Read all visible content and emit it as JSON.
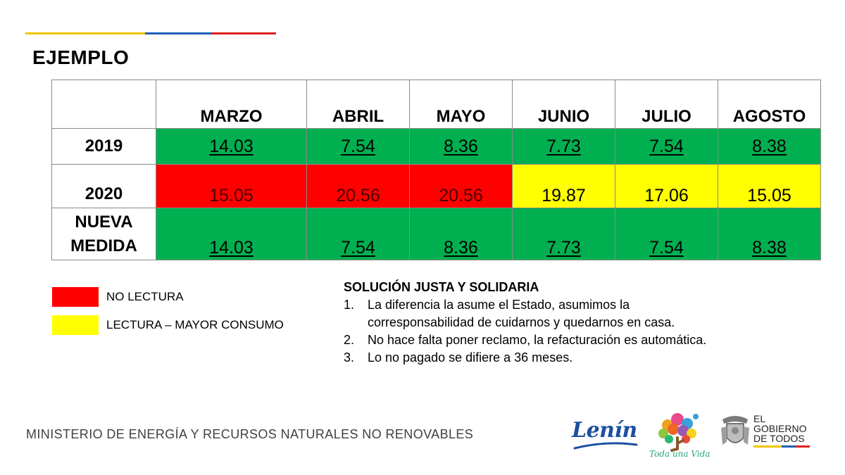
{
  "title": "EJEMPLO",
  "brand_rule_colors": [
    "#f5c400",
    "#1f5fb4",
    "#e02020"
  ],
  "table": {
    "months": [
      "MARZO",
      "ABRIL",
      "MAYO",
      "JUNIO",
      "JULIO",
      "AGOSTO"
    ],
    "rows": [
      {
        "label": "2019",
        "label_lines": [
          "2019"
        ],
        "values": [
          "14.03",
          "7.54",
          "8.36",
          "7.73",
          "7.54",
          "8.38"
        ],
        "colors": [
          "green",
          "green",
          "green",
          "green",
          "green",
          "green"
        ]
      },
      {
        "label": "2020",
        "label_lines": [
          "2020"
        ],
        "values": [
          "15.05",
          "20.56",
          "20.56",
          "19.87",
          "17.06",
          "15.05"
        ],
        "colors": [
          "red",
          "red",
          "red",
          "yellow",
          "yellow",
          "yellow"
        ]
      },
      {
        "label": "NUEVA MEDIDA",
        "label_lines": [
          "NUEVA",
          "MEDIDA"
        ],
        "values": [
          "14.03",
          "7.54",
          "8.36",
          "7.73",
          "7.54",
          "8.38"
        ],
        "colors": [
          "green",
          "green",
          "green",
          "green",
          "green",
          "green"
        ]
      }
    ],
    "status_colors": {
      "green": "#00b050",
      "red": "#ff0000",
      "yellow": "#ffff00"
    }
  },
  "legend": [
    {
      "color": "#ff0000",
      "label": "NO LECTURA"
    },
    {
      "color": "#ffff00",
      "label": "LECTURA – MAYOR CONSUMO"
    }
  ],
  "solution": {
    "title": "SOLUCIÓN JUSTA Y SOLIDARIA",
    "items": [
      {
        "num": "1.",
        "lines": [
          "La diferencia la asume el Estado, asumimos la",
          "corresponsabilidad de cuidarnos y quedarnos en casa."
        ]
      },
      {
        "num": "2.",
        "lines": [
          "No hace falta poner reclamo, la refacturación es automática."
        ]
      },
      {
        "num": "3.",
        "lines": [
          "Lo no pagado se difiere a 36 meses."
        ]
      }
    ]
  },
  "footer": {
    "ministry": "MINISTERIO DE ENERGÍA Y RECURSOS NATURALES NO RENOVABLES",
    "logo_lenin": "Lenín",
    "logo_tree_caption": "Toda una Vida",
    "logo_gobierno_lines": [
      "EL",
      "GOBIERNO",
      "DE TODOS"
    ]
  },
  "icons": {
    "tree_logo": "tree-logo-icon",
    "coat_of_arms": "coat-of-arms-icon",
    "lenin_swoosh": "swoosh-icon"
  }
}
